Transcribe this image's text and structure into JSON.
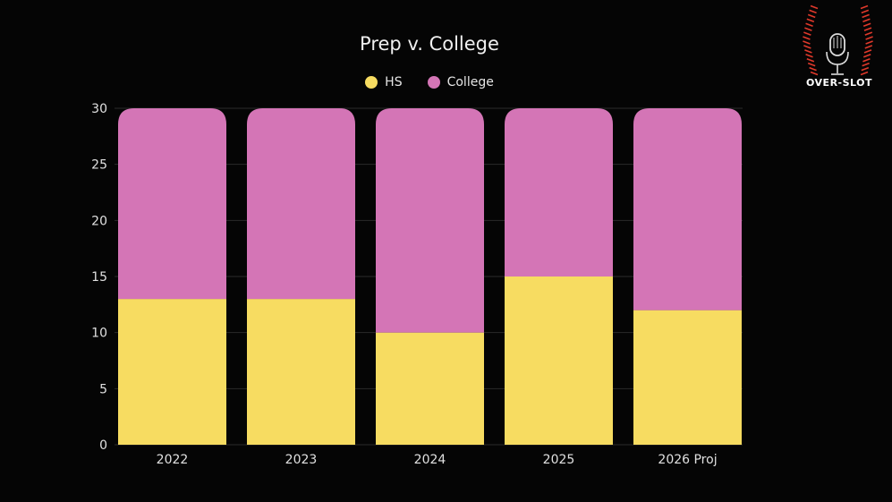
{
  "logo": {
    "text": "OVER-SLOT",
    "icon": "microphone-icon"
  },
  "chart_data": {
    "type": "bar",
    "stacked": true,
    "title": "Prep v. College",
    "xlabel": "",
    "ylabel": "",
    "categories": [
      "2022",
      "2023",
      "2024",
      "2025",
      "2026 Proj"
    ],
    "series": [
      {
        "name": "HS",
        "color": "#f7dc61",
        "values": [
          13,
          13,
          10,
          15,
          12
        ]
      },
      {
        "name": "College",
        "color": "#d475b6",
        "values": [
          17,
          17,
          20,
          15,
          18
        ]
      }
    ],
    "ylim": [
      0,
      30
    ],
    "yticks": [
      0,
      5,
      10,
      15,
      20,
      25,
      30
    ],
    "grid": true,
    "legend": "top-center"
  }
}
